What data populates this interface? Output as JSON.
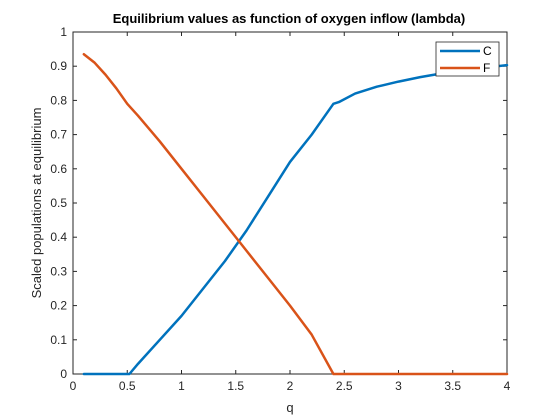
{
  "chart_data": {
    "type": "line",
    "title": "Equilibrium values as function of oxygen inflow (lambda)",
    "xlabel": "q",
    "ylabel": "Scaled populations at equilibrium",
    "xlim": [
      0,
      4
    ],
    "ylim": [
      0,
      1
    ],
    "xticks": [
      0,
      0.5,
      1,
      1.5,
      2,
      2.5,
      3,
      3.5,
      4
    ],
    "xtick_labels": [
      "0",
      "0.5",
      "1",
      "1.5",
      "2",
      "2.5",
      "3",
      "3.5",
      "4"
    ],
    "yticks": [
      0,
      0.1,
      0.2,
      0.3,
      0.4,
      0.5,
      0.6,
      0.7,
      0.8,
      0.9,
      1
    ],
    "ytick_labels": [
      "0",
      "0.1",
      "0.2",
      "0.3",
      "0.4",
      "0.5",
      "0.6",
      "0.7",
      "0.8",
      "0.9",
      "1"
    ],
    "grid": false,
    "legend_position": "top-right",
    "series": [
      {
        "name": "C",
        "color": "#0072BD",
        "x": [
          0.1,
          0.5,
          0.52,
          0.6,
          0.8,
          1.0,
          1.2,
          1.4,
          1.6,
          1.8,
          2.0,
          2.2,
          2.4,
          2.45,
          2.6,
          2.8,
          3.0,
          3.2,
          3.4,
          3.6,
          3.8,
          4.0
        ],
        "y": [
          0,
          0,
          0,
          0.03,
          0.1,
          0.17,
          0.25,
          0.33,
          0.42,
          0.52,
          0.62,
          0.7,
          0.79,
          0.795,
          0.82,
          0.84,
          0.855,
          0.868,
          0.879,
          0.888,
          0.896,
          0.903
        ]
      },
      {
        "name": "F",
        "color": "#D95319",
        "x": [
          0.1,
          0.2,
          0.3,
          0.4,
          0.5,
          0.6,
          0.8,
          1.0,
          1.2,
          1.4,
          1.6,
          1.8,
          2.0,
          2.2,
          2.4,
          2.6,
          2.8,
          3.0,
          3.2,
          3.4,
          3.6,
          3.8,
          4.0
        ],
        "y": [
          0.935,
          0.91,
          0.875,
          0.835,
          0.79,
          0.755,
          0.68,
          0.6,
          0.52,
          0.44,
          0.36,
          0.28,
          0.2,
          0.115,
          0,
          0,
          0,
          0,
          0,
          0,
          0,
          0,
          0
        ]
      }
    ]
  }
}
